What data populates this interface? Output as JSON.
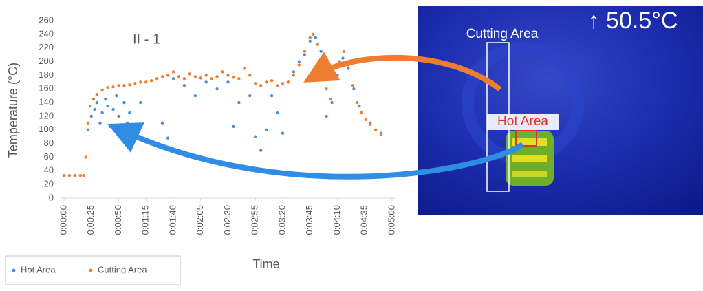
{
  "chart_data": {
    "type": "scatter",
    "title": "II - 1",
    "x_label": "Time",
    "y_label": "Temperature (°C)",
    "xlim": [
      0,
      300
    ],
    "ylim": [
      0,
      260
    ],
    "xticks": [
      {
        "value": 0,
        "label": "0:00:00"
      },
      {
        "value": 25,
        "label": "0:00:25"
      },
      {
        "value": 50,
        "label": "0:00:50"
      },
      {
        "value": 75,
        "label": "0:01:15"
      },
      {
        "value": 100,
        "label": "0:01:40"
      },
      {
        "value": 125,
        "label": "0:02:05"
      },
      {
        "value": 150,
        "label": "0:02:30"
      },
      {
        "value": 175,
        "label": "0:02:55"
      },
      {
        "value": 200,
        "label": "0:03:20"
      },
      {
        "value": 225,
        "label": "0:03:45"
      },
      {
        "value": 250,
        "label": "0:04:10"
      },
      {
        "value": 275,
        "label": "0:04:35"
      },
      {
        "value": 300,
        "label": "0:05:00"
      }
    ],
    "yticks": [
      0,
      20,
      40,
      60,
      80,
      100,
      120,
      140,
      160,
      180,
      200,
      220,
      240,
      260
    ],
    "series": [
      {
        "name": "Hot Area",
        "color": "#4a90d9",
        "x": [
          0,
          10,
          18,
          22,
          25,
          28,
          30,
          33,
          35,
          38,
          40,
          42,
          45,
          48,
          50,
          52,
          55,
          58,
          60,
          70,
          90,
          95,
          100,
          110,
          120,
          130,
          140,
          150,
          155,
          160,
          170,
          175,
          180,
          185,
          190,
          195,
          200,
          205,
          210,
          215,
          220,
          225,
          230,
          235,
          240,
          245,
          250,
          255,
          260,
          265,
          270,
          280,
          290
        ],
        "values": [
          33,
          33,
          33,
          100,
          120,
          130,
          140,
          110,
          125,
          145,
          135,
          105,
          130,
          150,
          120,
          95,
          140,
          110,
          125,
          140,
          110,
          88,
          175,
          165,
          150,
          170,
          160,
          170,
          105,
          140,
          150,
          90,
          70,
          100,
          150,
          125,
          95,
          170,
          185,
          200,
          210,
          230,
          235,
          215,
          120,
          140,
          180,
          205,
          190,
          160,
          135,
          110,
          95
        ]
      },
      {
        "name": "Cutting Area",
        "color": "#ed7d31",
        "x": [
          0,
          5,
          10,
          15,
          18,
          20,
          22,
          24,
          27,
          30,
          35,
          40,
          45,
          50,
          55,
          60,
          65,
          70,
          75,
          80,
          85,
          90,
          95,
          100,
          105,
          110,
          115,
          120,
          125,
          130,
          135,
          140,
          145,
          150,
          155,
          160,
          165,
          170,
          175,
          180,
          185,
          190,
          195,
          200,
          205,
          210,
          215,
          220,
          225,
          228,
          232,
          236,
          240,
          244,
          248,
          252,
          256,
          260,
          264,
          268,
          272,
          276,
          280,
          285,
          290
        ],
        "values": [
          33,
          33,
          33,
          33,
          33,
          60,
          110,
          135,
          145,
          152,
          158,
          162,
          163,
          165,
          165,
          166,
          168,
          170,
          170,
          172,
          175,
          178,
          180,
          185,
          178,
          175,
          182,
          178,
          176,
          180,
          175,
          178,
          185,
          180,
          177,
          175,
          190,
          180,
          168,
          165,
          170,
          172,
          165,
          168,
          170,
          180,
          195,
          215,
          235,
          240,
          225,
          200,
          160,
          145,
          175,
          200,
          215,
          195,
          165,
          140,
          125,
          115,
          108,
          100,
          93
        ]
      }
    ],
    "legend": "bottom-left",
    "annotations": {
      "temperature": "↑ 50.5°C",
      "cutting_area": "Cutting Area",
      "hot_area": "Hot Area"
    }
  }
}
